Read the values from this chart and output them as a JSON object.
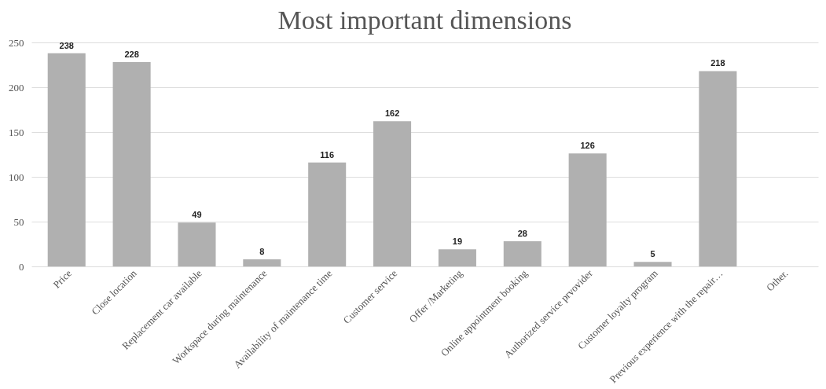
{
  "chart_data": {
    "type": "bar",
    "title": "Most important dimensions",
    "categories": [
      "Price",
      "Close location",
      "Replacement car available",
      "Workspace during maintenance",
      "Availability of maintenance time",
      "Customer service",
      "Offer /Marketing",
      "Online appointment booking",
      "Authorized service prvovider",
      "Customer loyalty program",
      "Previous experience with the repair…",
      "Other."
    ],
    "values": [
      238,
      228,
      49,
      8,
      116,
      162,
      19,
      28,
      126,
      5,
      218,
      null
    ],
    "color": "#b0b0b0",
    "ylim": [
      0,
      250
    ],
    "yticks": [
      0,
      50,
      100,
      150,
      200,
      250
    ],
    "grid": "y",
    "data_labels": true
  }
}
